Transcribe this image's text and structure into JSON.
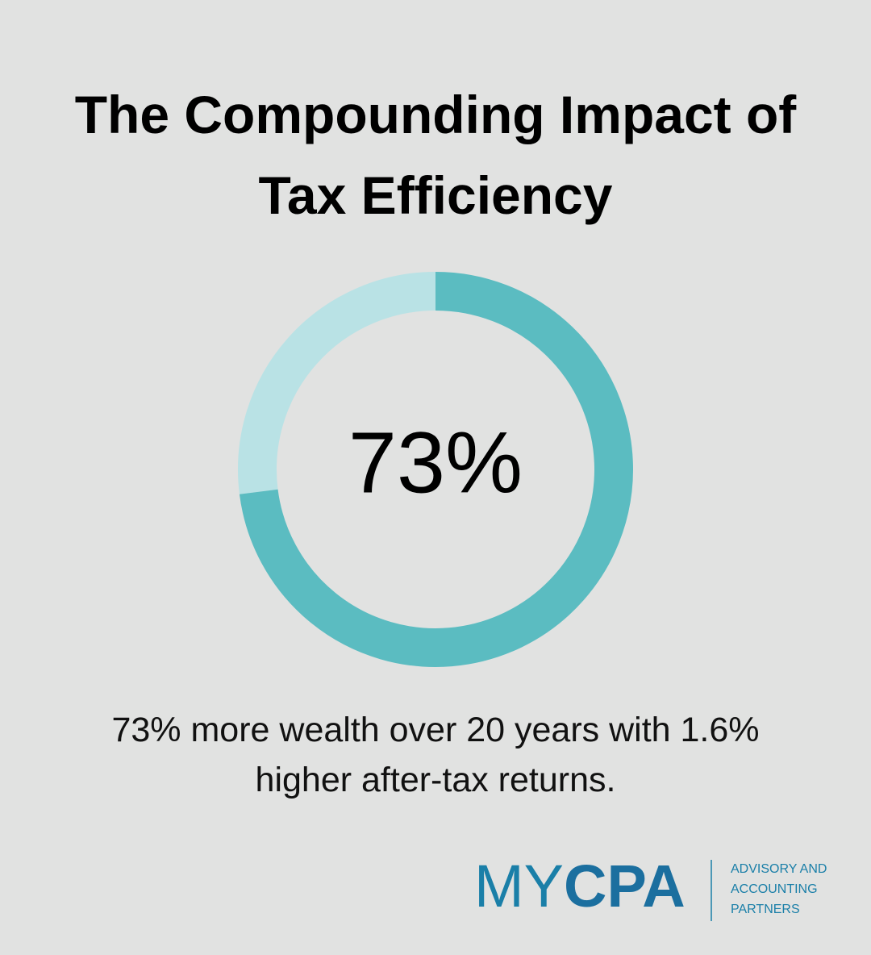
{
  "chart_data": {
    "type": "donut",
    "title": "The Compounding Impact of Tax Efficiency",
    "values": [
      73,
      27
    ],
    "value_labels": [
      "73%",
      null
    ],
    "colors": [
      "#5bbcc1",
      "#b9e2e5"
    ],
    "caption": "73% more wealth over 20 years with 1.6% higher after-tax returns."
  },
  "logo": {
    "name_light": "MY",
    "name_bold": "CPA",
    "tagline": [
      "ADVISORY AND",
      "ACCOUNTING",
      "PARTNERS"
    ]
  }
}
